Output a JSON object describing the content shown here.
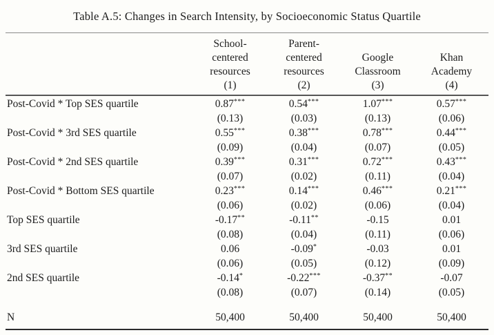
{
  "title": "Table A.5: Changes in Search Intensity, by Socioeconomic Status Quartile",
  "table": {
    "columns": [
      {
        "label": "School-\ncentered\nresources",
        "number": "(1)"
      },
      {
        "label": "Parent-\ncentered\nresources",
        "number": "(2)"
      },
      {
        "label": "Google\nClassroom",
        "number": "(3)"
      },
      {
        "label": "Khan\nAcademy",
        "number": "(4)"
      }
    ],
    "rows": [
      {
        "label": "Post-Covid * Top SES quartile",
        "cells": [
          {
            "est": "0.87",
            "stars": "***",
            "se": "(0.13)"
          },
          {
            "est": "0.54",
            "stars": "***",
            "se": "(0.03)"
          },
          {
            "est": "1.07",
            "stars": "***",
            "se": "(0.13)"
          },
          {
            "est": "0.57",
            "stars": "***",
            "se": "(0.06)"
          }
        ]
      },
      {
        "label": "Post-Covid * 3rd SES quartile",
        "cells": [
          {
            "est": "0.55",
            "stars": "***",
            "se": "(0.09)"
          },
          {
            "est": "0.38",
            "stars": "***",
            "se": "(0.04)"
          },
          {
            "est": "0.78",
            "stars": "***",
            "se": "(0.07)"
          },
          {
            "est": "0.44",
            "stars": "***",
            "se": "(0.05)"
          }
        ]
      },
      {
        "label": "Post-Covid * 2nd SES quartile",
        "cells": [
          {
            "est": "0.39",
            "stars": "***",
            "se": "(0.07)"
          },
          {
            "est": "0.31",
            "stars": "***",
            "se": "(0.02)"
          },
          {
            "est": "0.72",
            "stars": "***",
            "se": "(0.11)"
          },
          {
            "est": "0.43",
            "stars": "***",
            "se": "(0.04)"
          }
        ]
      },
      {
        "label": "Post-Covid * Bottom SES quartile",
        "cells": [
          {
            "est": "0.23",
            "stars": "***",
            "se": "(0.06)"
          },
          {
            "est": "0.14",
            "stars": "***",
            "se": "(0.02)"
          },
          {
            "est": "0.46",
            "stars": "***",
            "se": "(0.06)"
          },
          {
            "est": "0.21",
            "stars": "***",
            "se": "(0.04)"
          }
        ]
      },
      {
        "label": "Top SES quartile",
        "cells": [
          {
            "est": "-0.17",
            "stars": "**",
            "se": "(0.08)"
          },
          {
            "est": "-0.11",
            "stars": "**",
            "se": "(0.04)"
          },
          {
            "est": "-0.15",
            "stars": "",
            "se": "(0.11)"
          },
          {
            "est": "0.01",
            "stars": "",
            "se": "(0.06)"
          }
        ]
      },
      {
        "label": "3rd SES quartile",
        "cells": [
          {
            "est": "0.06",
            "stars": "",
            "se": "(0.06)"
          },
          {
            "est": "-0.09",
            "stars": "*",
            "se": "(0.05)"
          },
          {
            "est": "-0.03",
            "stars": "",
            "se": "(0.12)"
          },
          {
            "est": "0.01",
            "stars": "",
            "se": "(0.09)"
          }
        ]
      },
      {
        "label": "2nd SES quartile",
        "cells": [
          {
            "est": "-0.14",
            "stars": "*",
            "se": "(0.08)"
          },
          {
            "est": "-0.22",
            "stars": "***",
            "se": "(0.07)"
          },
          {
            "est": "-0.37",
            "stars": "**",
            "se": "(0.14)"
          },
          {
            "est": "-0.07",
            "stars": "",
            "se": "(0.05)"
          }
        ]
      }
    ],
    "n_row": {
      "label": "N",
      "values": [
        "50,400",
        "50,400",
        "50,400",
        "50,400"
      ]
    }
  }
}
